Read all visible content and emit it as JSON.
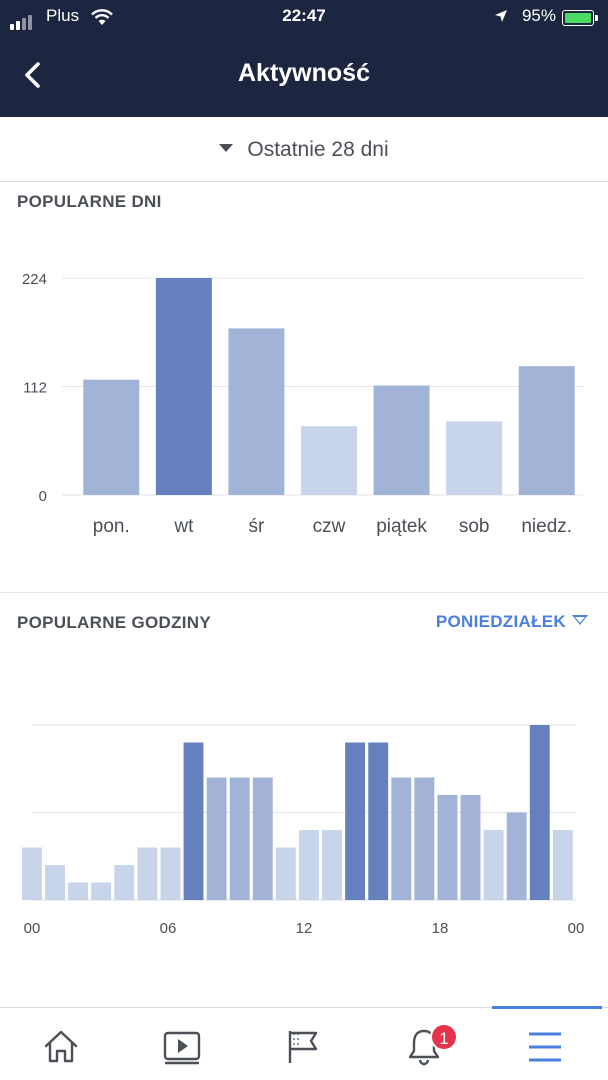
{
  "status_bar": {
    "carrier": "Plus",
    "time": "22:47",
    "battery_percent": "95%"
  },
  "header": {
    "title": "Aktywność",
    "back_icon": "chevron-left-icon"
  },
  "range_selector": {
    "label": "Ostatnie 28 dni",
    "icon": "caret-down-icon"
  },
  "popular_days": {
    "title": "POPULARNE DNI"
  },
  "popular_hours": {
    "title": "POPULARNE GODZINY",
    "day_selector": "PONIEDZIAŁEK"
  },
  "colors": {
    "dark": "#6481be",
    "mid": "#a1b3d7",
    "light": "#c8d4ea",
    "accent": "#4a7fe0",
    "header_bg": "#1c2640"
  },
  "chart_data": [
    {
      "type": "bar",
      "title": "POPULARNE DNI",
      "categories": [
        "pon.",
        "wt",
        "śr",
        "czw",
        "piątek",
        "sob",
        "niedz."
      ],
      "values": [
        119,
        224,
        172,
        71,
        113,
        76,
        133
      ],
      "levels": [
        "mid",
        "dark",
        "mid",
        "light",
        "mid",
        "light",
        "mid"
      ],
      "yticks": [
        "0",
        "112",
        "224"
      ],
      "ylim": [
        0,
        224
      ]
    },
    {
      "type": "bar",
      "title": "POPULARNE GODZINY",
      "categories": [
        "00",
        "01",
        "02",
        "03",
        "04",
        "05",
        "06",
        "07",
        "08",
        "09",
        "10",
        "11",
        "12",
        "13",
        "14",
        "15",
        "16",
        "17",
        "18",
        "19",
        "20",
        "21",
        "22",
        "23"
      ],
      "values": [
        3,
        2,
        1,
        1,
        2,
        3,
        3,
        9,
        7,
        7,
        7,
        3,
        4,
        4,
        9,
        9,
        7,
        7,
        6,
        6,
        4,
        5,
        10,
        4
      ],
      "levels": [
        "light",
        "light",
        "light",
        "light",
        "light",
        "light",
        "light",
        "dark",
        "mid",
        "mid",
        "mid",
        "light",
        "light",
        "light",
        "dark",
        "dark",
        "mid",
        "mid",
        "mid",
        "mid",
        "light",
        "mid",
        "dark",
        "light"
      ],
      "xticks": [
        "00",
        "06",
        "12",
        "18",
        "00"
      ],
      "ylim": [
        0,
        10
      ]
    }
  ],
  "tabbar": {
    "items": [
      {
        "name": "home-icon"
      },
      {
        "name": "video-icon"
      },
      {
        "name": "pages-flag-icon"
      },
      {
        "name": "bell-icon",
        "badge": "1"
      },
      {
        "name": "menu-icon",
        "active": true
      }
    ]
  }
}
